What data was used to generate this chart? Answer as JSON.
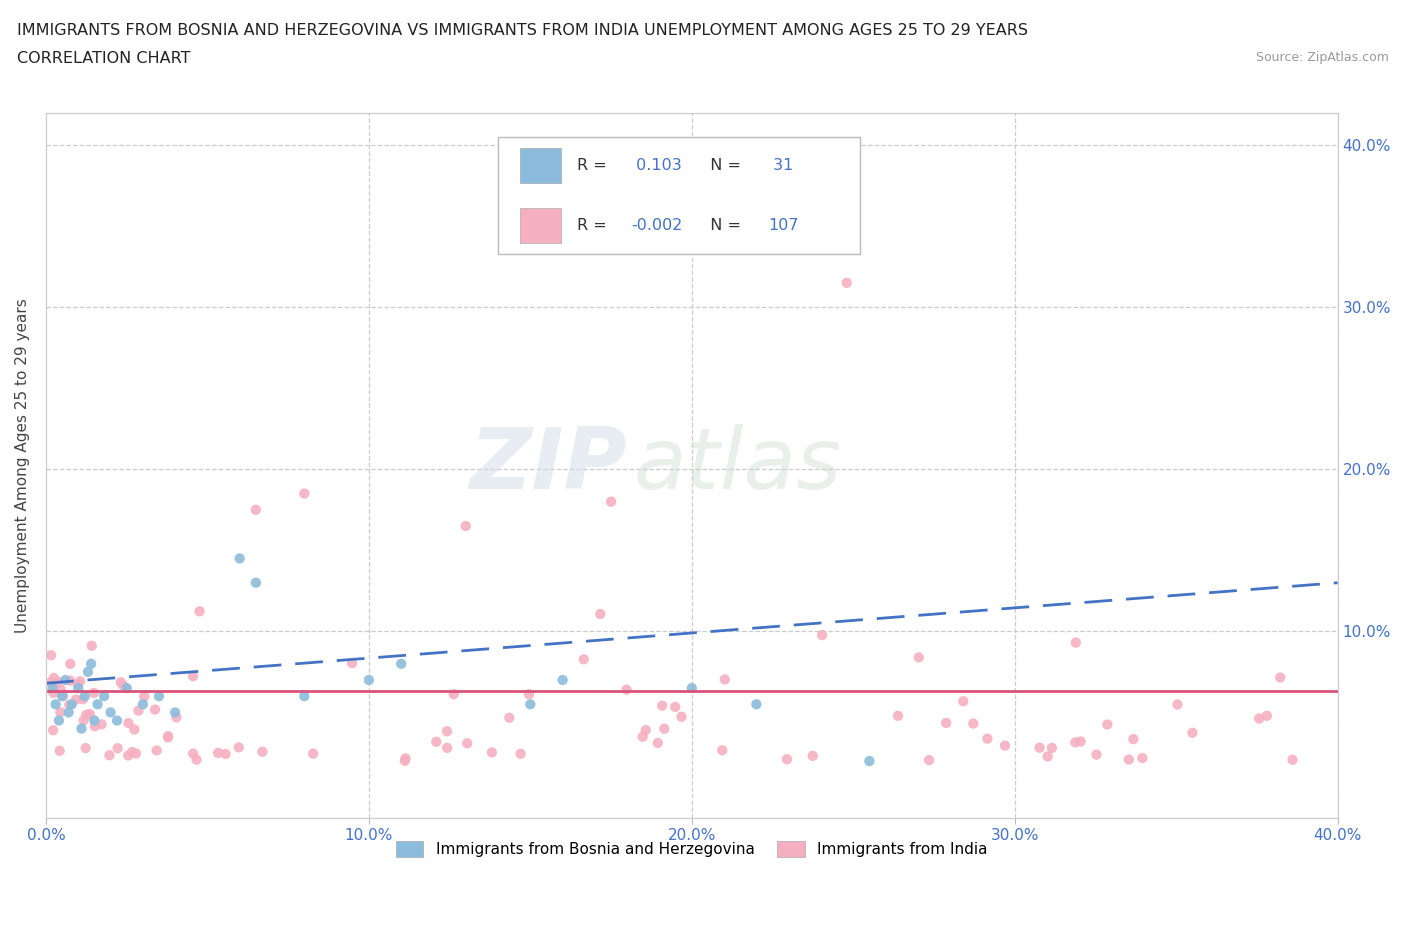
{
  "title_line1": "IMMIGRANTS FROM BOSNIA AND HERZEGOVINA VS IMMIGRANTS FROM INDIA UNEMPLOYMENT AMONG AGES 25 TO 29 YEARS",
  "title_line2": "CORRELATION CHART",
  "source_text": "Source: ZipAtlas.com",
  "ylabel": "Unemployment Among Ages 25 to 29 years",
  "xlim": [
    0.0,
    0.4
  ],
  "ylim": [
    -0.015,
    0.42
  ],
  "xtick_labels": [
    "0.0%",
    "10.0%",
    "20.0%",
    "30.0%",
    "40.0%"
  ],
  "xtick_vals": [
    0.0,
    0.1,
    0.2,
    0.3,
    0.4
  ],
  "ytick_vals": [
    0.1,
    0.2,
    0.3,
    0.4
  ],
  "right_ytick_labels": [
    "10.0%",
    "20.0%",
    "30.0%",
    "40.0%"
  ],
  "bosnia_color": "#8bbcdb",
  "india_color": "#f5afc0",
  "bosnia_trend_color": "#4472c4",
  "india_trend_color": "#d9547a",
  "watermark_zip": "ZIP",
  "watermark_atlas": "atlas",
  "legend_label1": "Immigrants from Bosnia and Herzegovina",
  "legend_label2": "Immigrants from India",
  "legend_R1": "0.103",
  "legend_N1": "31",
  "legend_R2": "-0.002",
  "legend_N2": "107"
}
